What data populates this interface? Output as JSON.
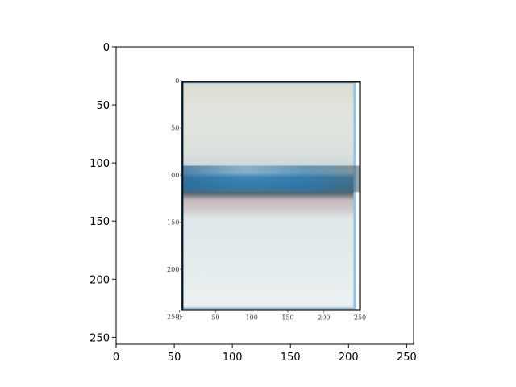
{
  "chart_data": {
    "type": "image",
    "title": "",
    "xlabel": "",
    "ylabel": "",
    "xlim": [
      0,
      256
    ],
    "ylim": [
      256,
      0
    ],
    "y_inverted": true,
    "grid": false,
    "x_ticks": [
      0,
      50,
      100,
      150,
      200,
      250
    ],
    "y_ticks": [
      0,
      50,
      100,
      150,
      200,
      250
    ],
    "x_tick_labels": [
      "0",
      "50",
      "100",
      "150",
      "200",
      "250"
    ],
    "y_tick_labels": [
      "0",
      "50",
      "100",
      "150",
      "200",
      "250"
    ],
    "image_extent": {
      "x": [
        56,
        206
      ],
      "y": [
        30,
        226
      ]
    },
    "embedded_plot": {
      "description_type": "photo of a plotted image with its own axes",
      "x_ticks": [
        0,
        50,
        100,
        150,
        200,
        250
      ],
      "y_ticks": [
        0,
        50,
        100,
        150,
        200,
        250
      ],
      "x_tick_labels": [
        "0",
        "50",
        "100",
        "150",
        "200",
        "250"
      ],
      "y_tick_labels": [
        "0",
        "50",
        "100",
        "150",
        "200",
        "250"
      ],
      "xlim": [
        0,
        256
      ],
      "ylim": [
        256,
        0
      ],
      "frame_data": {
        "x": [
          4,
          250
        ],
        "y": [
          1,
          243
        ]
      }
    },
    "colors": {
      "paper": "#e9efef",
      "sky_top": "#d9dcd0",
      "band_blue": "#3a7fae",
      "band_dark": "#3f4d58",
      "band_pink": "#c9b6b4",
      "water": "#dde7ea",
      "frame": "#111111",
      "edge_blue": "#8fc3e4"
    }
  }
}
